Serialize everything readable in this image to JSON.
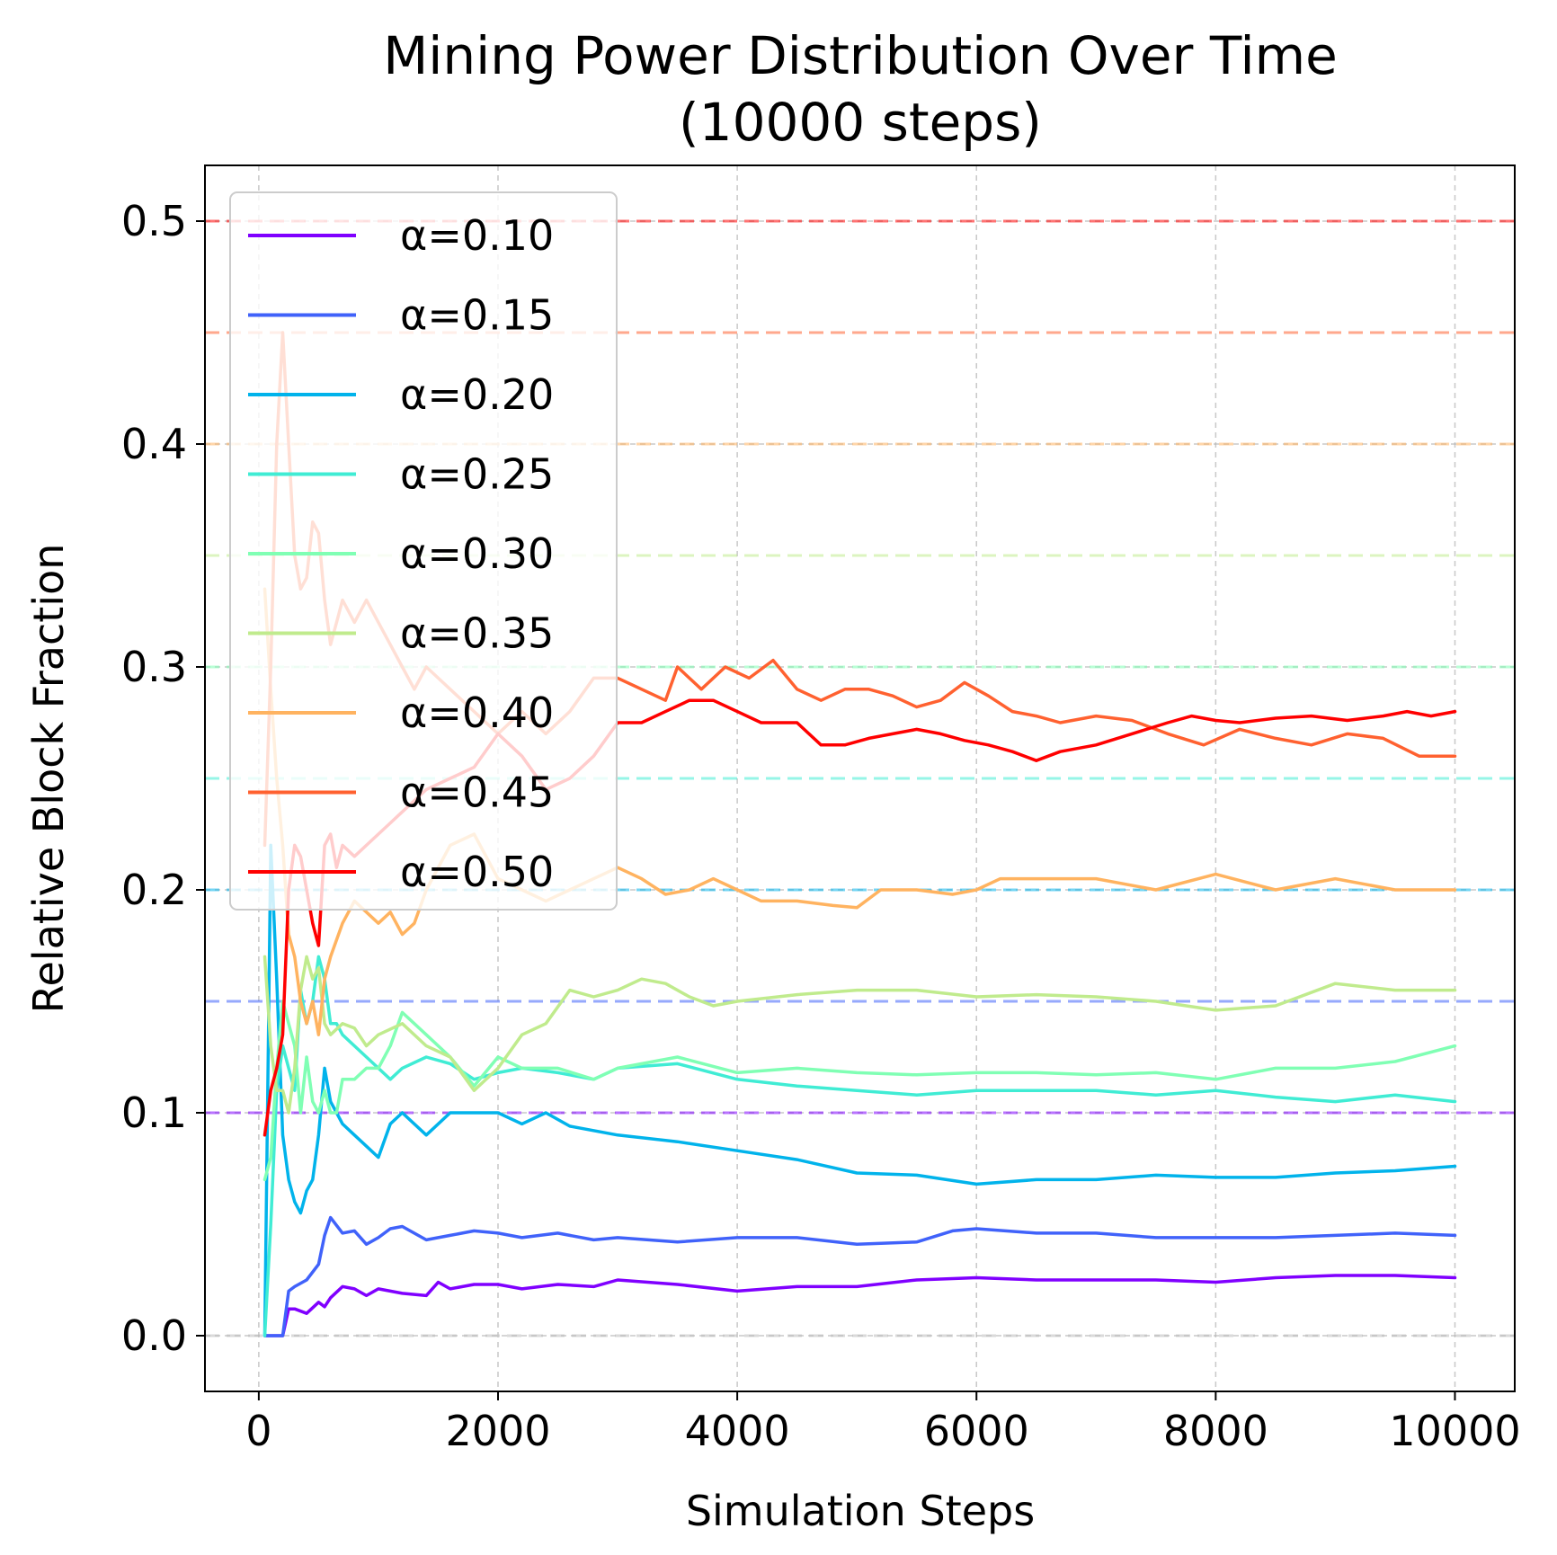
{
  "chart_data": {
    "type": "line",
    "title_line1": "Mining Power Distribution Over Time",
    "title_line2": "(10000 steps)",
    "xlabel": "Simulation Steps",
    "ylabel": "Relative Block Fraction",
    "xlim": [
      -450,
      10500
    ],
    "ylim": [
      -0.025,
      0.525
    ],
    "xticks": [
      0,
      2000,
      4000,
      6000,
      8000,
      10000
    ],
    "xtick_labels": [
      "0",
      "2000",
      "4000",
      "6000",
      "8000",
      "10000"
    ],
    "yticks": [
      0.0,
      0.1,
      0.2,
      0.3,
      0.4,
      0.5
    ],
    "ytick_labels": [
      "0.0",
      "0.1",
      "0.2",
      "0.3",
      "0.4",
      "0.5"
    ],
    "grid": true,
    "legend_position": "upper-left",
    "reference_lines": [
      {
        "y": 0.0,
        "color": "#bbbbbb"
      },
      {
        "y": 0.1,
        "color": "#8000ff"
      },
      {
        "y": 0.15,
        "color": "#4062fa"
      },
      {
        "y": 0.2,
        "color": "#01b3eb"
      },
      {
        "y": 0.25,
        "color": "#40ecd4"
      },
      {
        "y": 0.3,
        "color": "#80ffb4"
      },
      {
        "y": 0.35,
        "color": "#c0eb8d"
      },
      {
        "y": 0.4,
        "color": "#ffb360"
      },
      {
        "y": 0.45,
        "color": "#ff6130"
      },
      {
        "y": 0.5,
        "color": "#ff0000"
      }
    ],
    "series": [
      {
        "name": "α=0.10",
        "color": "#8000ff",
        "x": [
          50,
          100,
          150,
          200,
          250,
          300,
          400,
          500,
          550,
          600,
          700,
          800,
          900,
          1000,
          1200,
          1400,
          1500,
          1600,
          1800,
          2000,
          2200,
          2500,
          2800,
          3000,
          3500,
          4000,
          4500,
          5000,
          5500,
          6000,
          6500,
          7000,
          7500,
          8000,
          8500,
          9000,
          9500,
          10000
        ],
        "y": [
          0.0,
          0.0,
          0.0,
          0.0,
          0.012,
          0.012,
          0.01,
          0.015,
          0.013,
          0.017,
          0.022,
          0.021,
          0.018,
          0.021,
          0.019,
          0.018,
          0.024,
          0.021,
          0.023,
          0.023,
          0.021,
          0.023,
          0.022,
          0.025,
          0.023,
          0.02,
          0.022,
          0.022,
          0.025,
          0.026,
          0.025,
          0.025,
          0.025,
          0.024,
          0.026,
          0.027,
          0.027,
          0.026
        ]
      },
      {
        "name": "α=0.15",
        "color": "#4062fa",
        "x": [
          50,
          100,
          150,
          200,
          250,
          300,
          400,
          500,
          550,
          600,
          700,
          800,
          900,
          1000,
          1100,
          1200,
          1400,
          1600,
          1800,
          2000,
          2200,
          2500,
          2800,
          3000,
          3500,
          4000,
          4500,
          5000,
          5500,
          5800,
          6000,
          6500,
          7000,
          7500,
          8000,
          8500,
          9000,
          9500,
          10000
        ],
        "y": [
          0.0,
          0.0,
          0.0,
          0.0,
          0.02,
          0.022,
          0.025,
          0.032,
          0.045,
          0.053,
          0.046,
          0.047,
          0.041,
          0.044,
          0.048,
          0.049,
          0.043,
          0.045,
          0.047,
          0.046,
          0.044,
          0.046,
          0.043,
          0.044,
          0.042,
          0.044,
          0.044,
          0.041,
          0.042,
          0.047,
          0.048,
          0.046,
          0.046,
          0.044,
          0.044,
          0.044,
          0.045,
          0.046,
          0.045
        ]
      },
      {
        "name": "α=0.20",
        "color": "#01b3eb",
        "x": [
          50,
          100,
          150,
          200,
          250,
          300,
          350,
          400,
          450,
          500,
          550,
          600,
          650,
          700,
          800,
          900,
          1000,
          1100,
          1200,
          1400,
          1600,
          1800,
          2000,
          2200,
          2400,
          2600,
          3000,
          3500,
          4000,
          4500,
          5000,
          5500,
          6000,
          6500,
          7000,
          7500,
          8000,
          8500,
          9000,
          9500,
          10000
        ],
        "y": [
          0.0,
          0.22,
          0.16,
          0.09,
          0.07,
          0.06,
          0.055,
          0.065,
          0.07,
          0.09,
          0.12,
          0.105,
          0.1,
          0.095,
          0.09,
          0.085,
          0.08,
          0.095,
          0.1,
          0.09,
          0.1,
          0.1,
          0.1,
          0.095,
          0.1,
          0.094,
          0.09,
          0.087,
          0.083,
          0.079,
          0.073,
          0.072,
          0.068,
          0.07,
          0.07,
          0.072,
          0.071,
          0.071,
          0.073,
          0.074,
          0.076
        ]
      },
      {
        "name": "α=0.25",
        "color": "#40ecd4",
        "x": [
          50,
          100,
          150,
          200,
          250,
          300,
          350,
          400,
          450,
          500,
          550,
          600,
          650,
          700,
          800,
          900,
          1000,
          1100,
          1200,
          1400,
          1600,
          1800,
          2000,
          2200,
          2500,
          2800,
          3000,
          3500,
          4000,
          4500,
          5000,
          5500,
          6000,
          6500,
          7000,
          7500,
          8000,
          8500,
          9000,
          9500,
          10000
        ],
        "y": [
          0.0,
          0.05,
          0.11,
          0.13,
          0.12,
          0.11,
          0.155,
          0.14,
          0.15,
          0.17,
          0.16,
          0.14,
          0.14,
          0.135,
          0.13,
          0.125,
          0.12,
          0.115,
          0.12,
          0.125,
          0.122,
          0.115,
          0.118,
          0.12,
          0.118,
          0.115,
          0.12,
          0.122,
          0.115,
          0.112,
          0.11,
          0.108,
          0.11,
          0.11,
          0.11,
          0.108,
          0.11,
          0.107,
          0.105,
          0.108,
          0.105
        ]
      },
      {
        "name": "α=0.30",
        "color": "#80ffb4",
        "x": [
          50,
          100,
          150,
          200,
          250,
          300,
          350,
          400,
          450,
          500,
          550,
          600,
          650,
          700,
          800,
          900,
          1000,
          1100,
          1200,
          1300,
          1400,
          1600,
          1800,
          2000,
          2200,
          2500,
          2800,
          3000,
          3500,
          4000,
          4500,
          5000,
          5500,
          6000,
          6500,
          7000,
          7500,
          8000,
          8500,
          9000,
          9500,
          10000
        ],
        "y": [
          0.07,
          0.08,
          0.12,
          0.15,
          0.14,
          0.13,
          0.1,
          0.125,
          0.105,
          0.1,
          0.11,
          0.1,
          0.1,
          0.115,
          0.115,
          0.12,
          0.12,
          0.13,
          0.145,
          0.14,
          0.135,
          0.125,
          0.112,
          0.125,
          0.12,
          0.12,
          0.115,
          0.12,
          0.125,
          0.118,
          0.12,
          0.118,
          0.117,
          0.118,
          0.118,
          0.117,
          0.118,
          0.115,
          0.12,
          0.12,
          0.123,
          0.13
        ]
      },
      {
        "name": "α=0.35",
        "color": "#c0eb8d",
        "x": [
          50,
          100,
          150,
          200,
          250,
          300,
          350,
          400,
          450,
          500,
          550,
          600,
          700,
          800,
          900,
          1000,
          1200,
          1400,
          1600,
          1800,
          2000,
          2200,
          2400,
          2600,
          2800,
          3000,
          3200,
          3400,
          3600,
          3800,
          4000,
          4500,
          5000,
          5500,
          6000,
          6500,
          7000,
          7500,
          8000,
          8500,
          9000,
          9500,
          10000
        ],
        "y": [
          0.17,
          0.13,
          0.11,
          0.11,
          0.1,
          0.12,
          0.155,
          0.17,
          0.16,
          0.165,
          0.14,
          0.135,
          0.14,
          0.138,
          0.13,
          0.135,
          0.14,
          0.13,
          0.125,
          0.11,
          0.12,
          0.135,
          0.14,
          0.155,
          0.152,
          0.155,
          0.16,
          0.158,
          0.152,
          0.148,
          0.15,
          0.153,
          0.155,
          0.155,
          0.152,
          0.153,
          0.152,
          0.15,
          0.146,
          0.148,
          0.158,
          0.155,
          0.155
        ]
      },
      {
        "name": "α=0.40",
        "color": "#ffb360",
        "x": [
          50,
          100,
          150,
          200,
          250,
          300,
          350,
          400,
          450,
          500,
          550,
          600,
          700,
          800,
          900,
          1000,
          1100,
          1200,
          1300,
          1400,
          1600,
          1800,
          2000,
          2200,
          2400,
          2600,
          2800,
          3000,
          3200,
          3400,
          3600,
          3800,
          4000,
          4200,
          4500,
          4800,
          5000,
          5200,
          5500,
          5800,
          6000,
          6200,
          6500,
          7000,
          7500,
          8000,
          8500,
          9000,
          9500,
          10000
        ],
        "y": [
          0.335,
          0.29,
          0.25,
          0.22,
          0.18,
          0.17,
          0.15,
          0.14,
          0.15,
          0.135,
          0.16,
          0.17,
          0.185,
          0.195,
          0.19,
          0.185,
          0.19,
          0.18,
          0.185,
          0.2,
          0.22,
          0.225,
          0.205,
          0.2,
          0.195,
          0.2,
          0.205,
          0.21,
          0.205,
          0.198,
          0.2,
          0.205,
          0.2,
          0.195,
          0.195,
          0.193,
          0.192,
          0.2,
          0.2,
          0.198,
          0.2,
          0.205,
          0.205,
          0.205,
          0.2,
          0.207,
          0.2,
          0.205,
          0.2,
          0.2
        ]
      },
      {
        "name": "α=0.45",
        "color": "#ff6130",
        "x": [
          50,
          100,
          150,
          200,
          250,
          300,
          350,
          400,
          450,
          500,
          550,
          600,
          650,
          700,
          800,
          900,
          1000,
          1100,
          1200,
          1300,
          1400,
          1600,
          1800,
          2000,
          2200,
          2400,
          2600,
          2800,
          3000,
          3200,
          3400,
          3500,
          3700,
          3900,
          4100,
          4300,
          4500,
          4700,
          4900,
          5100,
          5300,
          5500,
          5700,
          5900,
          6100,
          6300,
          6500,
          6700,
          7000,
          7300,
          7600,
          7900,
          8200,
          8500,
          8800,
          9100,
          9400,
          9700,
          10000
        ],
        "y": [
          0.22,
          0.3,
          0.4,
          0.45,
          0.4,
          0.35,
          0.335,
          0.34,
          0.365,
          0.36,
          0.33,
          0.31,
          0.32,
          0.33,
          0.32,
          0.33,
          0.32,
          0.31,
          0.3,
          0.29,
          0.3,
          0.29,
          0.28,
          0.27,
          0.28,
          0.27,
          0.28,
          0.295,
          0.295,
          0.29,
          0.285,
          0.3,
          0.29,
          0.3,
          0.295,
          0.303,
          0.29,
          0.285,
          0.29,
          0.29,
          0.287,
          0.282,
          0.285,
          0.293,
          0.287,
          0.28,
          0.278,
          0.275,
          0.278,
          0.276,
          0.27,
          0.265,
          0.272,
          0.268,
          0.265,
          0.27,
          0.268,
          0.26,
          0.26
        ]
      },
      {
        "name": "α=0.50",
        "color": "#ff0000",
        "x": [
          50,
          100,
          150,
          200,
          250,
          300,
          350,
          400,
          450,
          500,
          550,
          600,
          650,
          700,
          800,
          900,
          1000,
          1100,
          1200,
          1300,
          1400,
          1600,
          1800,
          2000,
          2200,
          2400,
          2600,
          2800,
          3000,
          3200,
          3400,
          3600,
          3800,
          4000,
          4200,
          4500,
          4700,
          4900,
          5100,
          5300,
          5500,
          5700,
          5900,
          6100,
          6300,
          6500,
          6700,
          7000,
          7300,
          7600,
          7800,
          8000,
          8200,
          8500,
          8800,
          9100,
          9400,
          9600,
          9800,
          10000
        ],
        "y": [
          0.09,
          0.11,
          0.12,
          0.135,
          0.2,
          0.22,
          0.215,
          0.2,
          0.185,
          0.175,
          0.22,
          0.225,
          0.21,
          0.22,
          0.215,
          0.22,
          0.225,
          0.23,
          0.235,
          0.24,
          0.245,
          0.25,
          0.255,
          0.27,
          0.26,
          0.245,
          0.25,
          0.26,
          0.275,
          0.275,
          0.28,
          0.285,
          0.285,
          0.28,
          0.275,
          0.275,
          0.265,
          0.265,
          0.268,
          0.27,
          0.272,
          0.27,
          0.267,
          0.265,
          0.262,
          0.258,
          0.262,
          0.265,
          0.27,
          0.275,
          0.278,
          0.276,
          0.275,
          0.277,
          0.278,
          0.276,
          0.278,
          0.28,
          0.278,
          0.28
        ]
      }
    ]
  }
}
